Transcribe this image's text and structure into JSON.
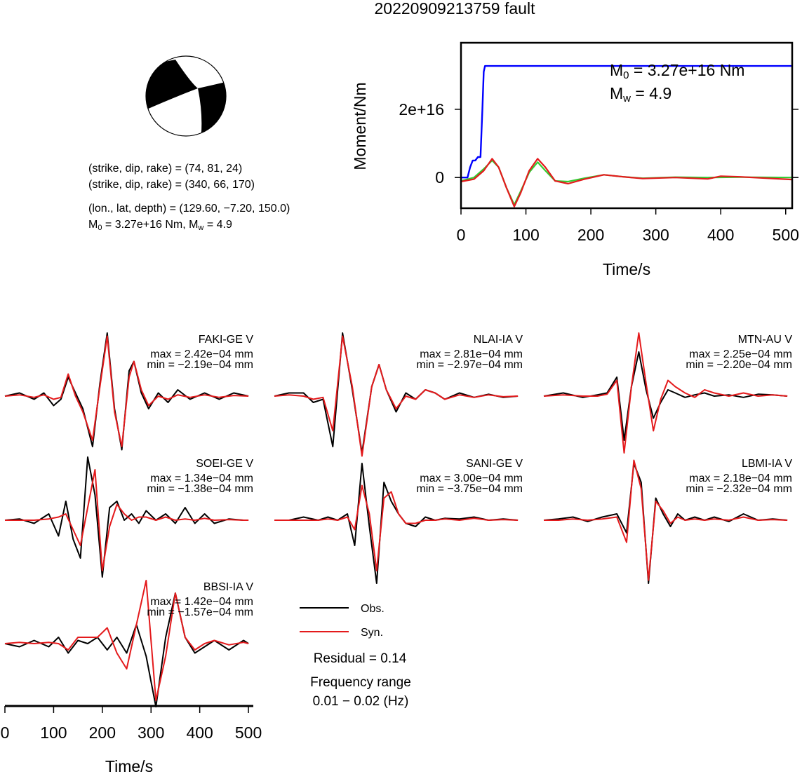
{
  "title": "20220909213759 fault",
  "mechanism": {
    "planes": [
      {
        "label": "(strike, dip, rake) = (74, 81, 24)"
      },
      {
        "label": "(strike, dip, rake) = (340, 66, 170)"
      }
    ],
    "location": "(lon., lat, depth) = (129.60, −7.20, 150.0)",
    "moment_line": {
      "m0_sym": "M",
      "m0_sub": "0",
      "m0_val": " = 3.27e+16 Nm, ",
      "mw_sym": "M",
      "mw_sub": "w",
      "mw_val": " = 4.9"
    }
  },
  "moment_panel": {
    "annotation": {
      "m0_sym": "M",
      "m0_sub": "0",
      "m0_val": " = 3.27e+16 Nm",
      "mw_sym": "M",
      "mw_sub": "w",
      "mw_val": " = 4.9"
    }
  },
  "legend": {
    "obs": "Obs.",
    "syn": "Syn.",
    "residual": "Residual = 0.14",
    "freq_title": "Frequency range",
    "freq_value": "0.01 − 0.02 (Hz)"
  },
  "colors": {
    "obs": "#000000",
    "syn": "#e41a1c",
    "moment": "#0000ff",
    "stf_green": "#33cc33",
    "frame": "#000000"
  },
  "chart_data": [
    {
      "type": "line",
      "title": "",
      "xlabel": "Time/s",
      "ylabel": "Moment/Nm",
      "xlim": [
        0,
        510
      ],
      "ylim": [
        -9000000000000000.0,
        3.95e+16
      ],
      "xticks": [
        0,
        100,
        200,
        300,
        400,
        500
      ],
      "yticks": [
        {
          "value": 0,
          "label": "0"
        },
        {
          "value": 2e+16,
          "label": "2e+16"
        }
      ],
      "series": [
        {
          "color": "#0000ff",
          "x": [
            0,
            10,
            14,
            18,
            22,
            26,
            30,
            33,
            35,
            37,
            510
          ],
          "y": [
            0,
            0,
            3000000000000000.0,
            5000000000000000.0,
            5000000000000000.0,
            6000000000000000.0,
            6000000000000000.0,
            2e+16,
            3.1e+16,
            3.27e+16,
            3.27e+16
          ]
        },
        {
          "color": "#33cc33",
          "x": [
            0,
            20,
            35,
            48,
            58,
            70,
            82,
            92,
            105,
            118,
            130,
            145,
            165,
            190,
            220,
            250,
            280,
            330,
            380,
            430,
            510
          ],
          "y": [
            -1000000000000000.0,
            0.0,
            2500000000000000.0,
            5000000000000000.0,
            3000000000000000.0,
            -3000000000000000.0,
            -8000000000000000.0,
            -4000000000000000.0,
            1500000000000000.0,
            4500000000000000.0,
            2000000000000000.0,
            -1000000000000000.0,
            -1200000000000000.0,
            -200000000000000.0,
            800000000000000.0,
            200000000000000.0,
            -200000000000000.0,
            100000000000000.0,
            0.0,
            100000000000000.0,
            0.0
          ]
        },
        {
          "color": "#e41a1c",
          "x": [
            0,
            20,
            35,
            48,
            58,
            70,
            82,
            92,
            105,
            118,
            130,
            145,
            165,
            190,
            220,
            250,
            280,
            330,
            380,
            400,
            430,
            470,
            510
          ],
          "y": [
            -1200000000000000.0,
            -500000000000000.0,
            2000000000000000.0,
            5500000000000000.0,
            3000000000000000.0,
            -3000000000000000.0,
            -8500000000000000.0,
            -4500000000000000.0,
            2000000000000000.0,
            5500000000000000.0,
            3000000000000000.0,
            -1000000000000000.0,
            -1800000000000000.0,
            -500000000000000.0,
            800000000000000.0,
            200000000000000.0,
            -300000000000000.0,
            0.0,
            -400000000000000.0,
            400000000000000.0,
            200000000000000.0,
            -200000000000000.0,
            -600000000000000.0
          ]
        }
      ]
    },
    {
      "type": "line",
      "xlabel": "Time/s",
      "xlim": [
        0,
        510
      ],
      "xticks": [
        0,
        100,
        200,
        300,
        400,
        500
      ],
      "traces": [
        {
          "station": "FAKI-GE V",
          "max": "max = 2.42e−04 mm",
          "min": "min = −2.19e−04 mm",
          "obs": {
            "x": [
              0,
              30,
              60,
              80,
              100,
              115,
              130,
              145,
              160,
              180,
              195,
              210,
              225,
              240,
              255,
              265,
              280,
              295,
              315,
              335,
              355,
              380,
              410,
              440,
              470,
              500
            ],
            "y": [
              0,
              0.05,
              -0.05,
              0.05,
              -0.15,
              -0.05,
              0.3,
              0.05,
              -0.2,
              -0.8,
              0.2,
              1.0,
              -0.2,
              -0.85,
              0.4,
              0.55,
              0.05,
              -0.2,
              0.05,
              -0.1,
              0.1,
              -0.05,
              0.05,
              -0.05,
              0.05,
              0
            ]
          },
          "syn": {
            "x": [
              0,
              30,
              60,
              80,
              100,
              115,
              130,
              145,
              160,
              180,
              195,
              210,
              225,
              240,
              255,
              265,
              280,
              295,
              315,
              335,
              355,
              380,
              410,
              440,
              470,
              500
            ],
            "y": [
              0,
              0.02,
              -0.02,
              0.02,
              -0.05,
              -0.02,
              0.35,
              0.0,
              -0.25,
              -0.7,
              0.15,
              0.95,
              -0.25,
              -0.8,
              0.3,
              0.55,
              0.1,
              -0.15,
              0.0,
              -0.05,
              0.02,
              -0.02,
              0.02,
              -0.02,
              0.01,
              0
            ]
          }
        },
        {
          "station": "NLAI-IA V",
          "max": "max = 2.81e−04 mm",
          "min": "min = −2.97e−04 mm",
          "obs": {
            "x": [
              0,
              30,
              60,
              80,
              100,
              120,
              140,
              160,
              180,
              200,
              215,
              230,
              250,
              270,
              290,
              310,
              330,
              350,
              380,
              410,
              440,
              470,
              500
            ],
            "y": [
              0,
              0.05,
              0.05,
              -0.1,
              -0.05,
              -0.8,
              1.0,
              0.1,
              -0.9,
              0.15,
              0.5,
              0.1,
              -0.25,
              0.05,
              -0.05,
              0.1,
              0.05,
              -0.05,
              0.05,
              -0.02,
              0.03,
              -0.02,
              0
            ]
          },
          "syn": {
            "x": [
              0,
              30,
              60,
              80,
              100,
              120,
              140,
              160,
              180,
              200,
              215,
              230,
              250,
              270,
              290,
              310,
              330,
              350,
              380,
              410,
              440,
              470,
              500
            ],
            "y": [
              0,
              0.02,
              0.0,
              -0.05,
              -0.02,
              -0.55,
              0.95,
              0.15,
              -0.95,
              0.15,
              0.5,
              0.1,
              -0.2,
              0.0,
              -0.05,
              0.1,
              0.05,
              -0.05,
              0.02,
              -0.02,
              0.02,
              -0.01,
              0
            ]
          }
        },
        {
          "station": "MTN-AU V",
          "max": "max = 2.25e−04 mm",
          "min": "min = −2.20e−04 mm",
          "obs": {
            "x": [
              0,
              40,
              80,
              110,
              130,
              150,
              165,
              180,
              195,
              210,
              225,
              240,
              255,
              270,
              290,
              310,
              330,
              350,
              380,
              410,
              440,
              470,
              500
            ],
            "y": [
              0,
              0.05,
              -0.02,
              0.02,
              0.05,
              0.3,
              -0.7,
              0.15,
              0.7,
              0.1,
              -0.35,
              -0.1,
              0.1,
              0.05,
              -0.02,
              0.02,
              0.05,
              0.0,
              0.02,
              -0.02,
              0.03,
              0.02,
              0
            ]
          },
          "syn": {
            "x": [
              0,
              40,
              80,
              110,
              130,
              150,
              165,
              180,
              195,
              210,
              225,
              240,
              255,
              270,
              290,
              310,
              330,
              350,
              380,
              410,
              440,
              470,
              500
            ],
            "y": [
              0,
              0.02,
              0.0,
              0.0,
              0.03,
              0.25,
              -0.9,
              0.15,
              1.0,
              0.2,
              -0.55,
              -0.05,
              0.25,
              0.15,
              0.05,
              -0.02,
              0.1,
              0.05,
              0.0,
              0.05,
              0.0,
              0.02,
              0
            ]
          }
        },
        {
          "station": "SOEI-GE V",
          "max": "max = 1.34e−04 mm",
          "min": "min = −1.38e−04 mm",
          "obs": {
            "x": [
              0,
              30,
              60,
              90,
              110,
              125,
              140,
              155,
              170,
              185,
              200,
              215,
              230,
              245,
              260,
              275,
              290,
              310,
              330,
              350,
              370,
              390,
              410,
              430,
              460,
              490,
              500
            ],
            "y": [
              0,
              0.02,
              -0.05,
              0.1,
              -0.25,
              0.3,
              -0.3,
              -0.6,
              1.0,
              0.4,
              -0.9,
              0.2,
              0.3,
              0.0,
              0.1,
              -0.05,
              0.15,
              0.0,
              0.1,
              -0.05,
              0.2,
              -0.05,
              0.1,
              -0.05,
              0.02,
              0,
              0
            ]
          },
          "syn": {
            "x": [
              0,
              30,
              60,
              90,
              110,
              125,
              140,
              155,
              170,
              185,
              200,
              215,
              230,
              245,
              260,
              275,
              290,
              310,
              330,
              350,
              370,
              390,
              410,
              430,
              460,
              490,
              500
            ],
            "y": [
              0,
              0.0,
              0.0,
              0.02,
              0.05,
              0.1,
              -0.15,
              -0.4,
              0.2,
              0.8,
              -0.8,
              -0.1,
              0.25,
              0.1,
              0.0,
              0.05,
              0.05,
              0.0,
              0.05,
              0.0,
              0.02,
              0.0,
              0.03,
              0.0,
              0.01,
              0,
              0
            ]
          }
        },
        {
          "station": "SANI-GE V",
          "max": "max = 3.00e−04 mm",
          "min": "min = −3.75e−04 mm",
          "obs": {
            "x": [
              0,
              30,
              60,
              90,
              110,
              130,
              150,
              165,
              180,
              195,
              210,
              225,
              240,
              255,
              270,
              290,
              310,
              330,
              350,
              380,
              410,
              440,
              470,
              500
            ],
            "y": [
              0,
              0.0,
              0.05,
              0.0,
              0.05,
              0.0,
              0.1,
              -0.4,
              0.9,
              -0.1,
              -1.0,
              0.6,
              0.3,
              0.1,
              -0.05,
              -0.1,
              0.05,
              0.0,
              0.03,
              0.02,
              0.05,
              0.0,
              0.02,
              0
            ]
          },
          "syn": {
            "x": [
              0,
              30,
              60,
              90,
              110,
              130,
              150,
              165,
              180,
              195,
              210,
              225,
              240,
              255,
              270,
              290,
              310,
              330,
              350,
              380,
              410,
              440,
              470,
              500
            ],
            "y": [
              0,
              0.0,
              0.0,
              0.0,
              0.02,
              0.0,
              0.05,
              -0.15,
              0.55,
              0.1,
              -0.8,
              0.35,
              0.45,
              0.1,
              -0.05,
              -0.05,
              0.0,
              0.0,
              0.02,
              0.0,
              0.03,
              0.0,
              0.01,
              0
            ]
          }
        },
        {
          "station": "LBMI-IA V",
          "max": "max = 2.18e−04 mm",
          "min": "min = −2.32e−04 mm",
          "obs": {
            "x": [
              0,
              30,
              60,
              90,
              120,
              150,
              170,
              185,
              200,
              215,
              230,
              245,
              260,
              275,
              290,
              310,
              330,
              350,
              380,
              410,
              440,
              470,
              500
            ],
            "y": [
              0,
              0.02,
              0.05,
              -0.02,
              0.05,
              0.1,
              -0.2,
              0.9,
              0.6,
              -1.0,
              0.35,
              0.1,
              -0.1,
              0.1,
              0.0,
              0.05,
              0.0,
              0.05,
              -0.02,
              0.1,
              0.0,
              0.02,
              0
            ]
          },
          "syn": {
            "x": [
              0,
              30,
              60,
              90,
              120,
              150,
              170,
              185,
              200,
              215,
              230,
              245,
              260,
              275,
              290,
              310,
              330,
              350,
              380,
              410,
              440,
              470,
              500
            ],
            "y": [
              0,
              0.0,
              0.02,
              0.0,
              0.02,
              0.05,
              -0.35,
              0.95,
              0.5,
              -0.95,
              0.3,
              0.15,
              -0.05,
              0.05,
              0.0,
              0.02,
              0.0,
              0.02,
              0.0,
              0.05,
              0.0,
              0.01,
              0
            ]
          }
        },
        {
          "station": "BBSI-IA V",
          "max": "max = 1.42e−04 mm",
          "min": "min = −1.57e−04 mm",
          "obs": {
            "x": [
              0,
              30,
              60,
              90,
              110,
              130,
              150,
              170,
              190,
              210,
              230,
              250,
              270,
              290,
              310,
              330,
              350,
              370,
              390,
              410,
              430,
              460,
              490,
              500
            ],
            "y": [
              0,
              -0.05,
              0.05,
              -0.05,
              0.1,
              -0.15,
              0.05,
              0.0,
              0.1,
              -0.1,
              0.1,
              -0.15,
              0.3,
              -0.2,
              -1.0,
              0.1,
              0.8,
              0.1,
              -0.15,
              -0.05,
              0.05,
              -0.1,
              0.05,
              0
            ]
          },
          "syn": {
            "x": [
              0,
              30,
              60,
              90,
              110,
              130,
              150,
              170,
              190,
              210,
              230,
              250,
              270,
              290,
              310,
              330,
              350,
              370,
              390,
              410,
              430,
              460,
              490,
              500
            ],
            "y": [
              0,
              0.02,
              0.0,
              0.02,
              0.0,
              -0.1,
              0.1,
              0.1,
              0.1,
              0.25,
              -0.15,
              -0.4,
              0.3,
              1.0,
              -0.9,
              -0.2,
              0.8,
              0.1,
              -0.1,
              0.0,
              0.05,
              -0.02,
              0.02,
              0
            ]
          }
        }
      ]
    }
  ]
}
